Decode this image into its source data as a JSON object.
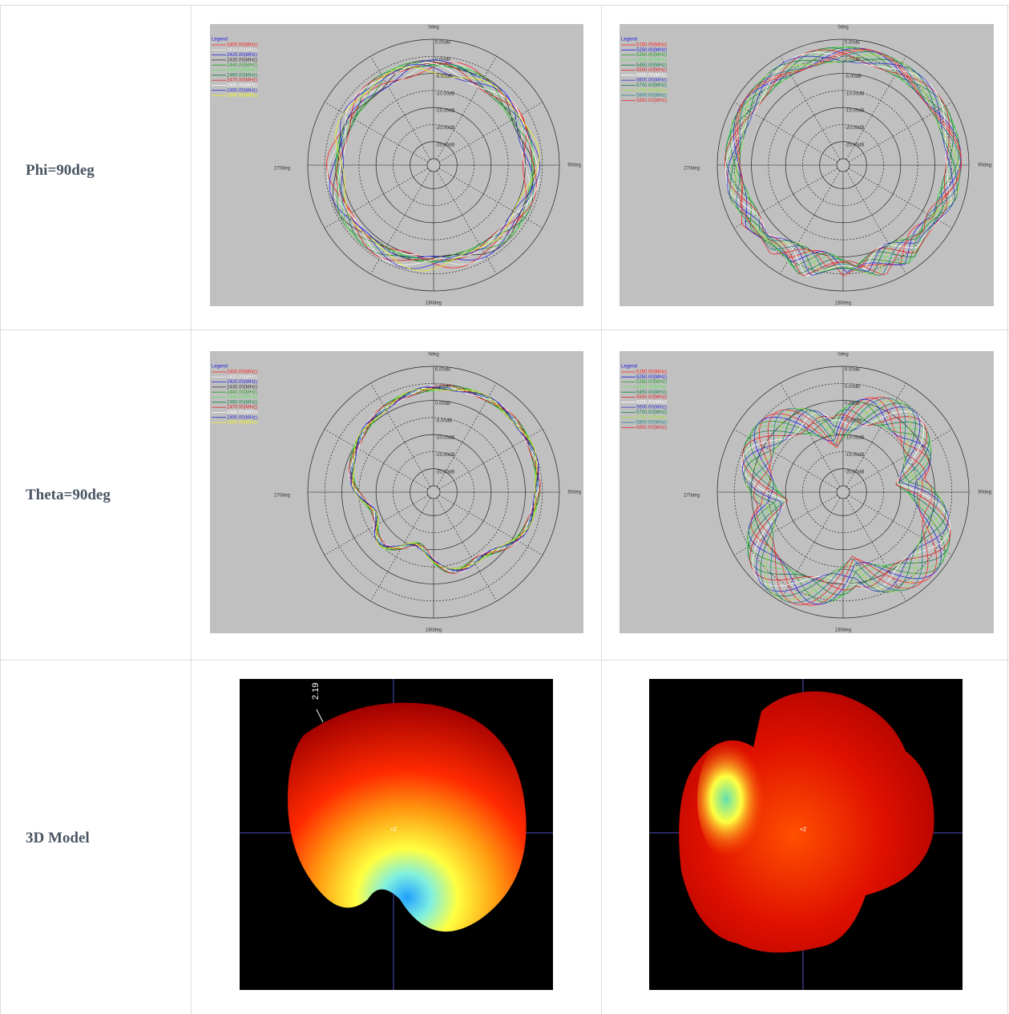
{
  "table": {
    "rows": [
      {
        "label": "Phi=90deg",
        "cells": [
          {
            "legend_title": "Legend",
            "legend": [
              {
                "label": "2400.00(MHz)",
                "color": "#ff2020"
              },
              {
                "label": "2410.00(MHz)",
                "color": "#f0f0f0"
              },
              {
                "label": "2420.00(MHz)",
                "color": "#2020e0"
              },
              {
                "label": "2430.00(MHz)",
                "color": "#303030"
              },
              {
                "label": "2440.00(MHz)",
                "color": "#20a020"
              },
              {
                "label": "2450.00(MHz)",
                "color": "#60e060"
              },
              {
                "label": "2460.00(MHz)",
                "color": "#108040"
              },
              {
                "label": "2470.00(MHz)",
                "color": "#e02020"
              },
              {
                "label": "2480.00(MHz)",
                "color": "#ffffff"
              },
              {
                "label": "2490.00(MHz)",
                "color": "#3030d0"
              },
              {
                "label": "2500.00(MHz)",
                "color": "#f0f020"
              }
            ],
            "angle_labels": [
              "0deg",
              "90deg",
              "180deg",
              "270deg"
            ],
            "ring_labels": [
              "5.00dB",
              "0.00dB",
              "-5.00dB",
              "-10.00dB",
              "-15.00dB",
              "-20.00dB",
              "-25.00dB"
            ]
          },
          {
            "legend_title": "Legend",
            "legend": [
              {
                "label": "5150.00(MHz)",
                "color": "#ff2020"
              },
              {
                "label": "5250.00(MHz)",
                "color": "#2020e0"
              },
              {
                "label": "5350.00(MHz)",
                "color": "#20a020"
              },
              {
                "label": "5400.00(MHz)",
                "color": "#60e060"
              },
              {
                "label": "5450.00(MHz)",
                "color": "#108040"
              },
              {
                "label": "5500.00(MHz)",
                "color": "#e02020"
              },
              {
                "label": "5550.00(MHz)",
                "color": "#ffffff"
              },
              {
                "label": "5600.00(MHz)",
                "color": "#3030d0"
              },
              {
                "label": "5700.00(MHz)",
                "color": "#108040"
              },
              {
                "label": "5750.00(MHz)",
                "color": "#a0e040"
              },
              {
                "label": "5800.00(MHz)",
                "color": "#208080"
              },
              {
                "label": "5850.00(MHz)",
                "color": "#e03030"
              }
            ],
            "angle_labels": [
              "0deg",
              "90deg",
              "180deg",
              "270deg"
            ],
            "ring_labels": [
              "5.00dB",
              "0.00dB",
              "-5.00dB",
              "-10.00dB",
              "-15.00dB",
              "-20.00dB",
              "-25.00dB"
            ]
          }
        ]
      },
      {
        "label": "Theta=90deg",
        "cells": [
          {
            "legend_title": "Legend",
            "legend": [
              {
                "label": "2400.00(MHz)",
                "color": "#ff2020"
              },
              {
                "label": "2410.00(MHz)",
                "color": "#f0f0f0"
              },
              {
                "label": "2420.00(MHz)",
                "color": "#2020e0"
              },
              {
                "label": "2430.00(MHz)",
                "color": "#303030"
              },
              {
                "label": "2440.00(MHz)",
                "color": "#20a020"
              },
              {
                "label": "2450.00(MHz)",
                "color": "#60e060"
              },
              {
                "label": "2460.00(MHz)",
                "color": "#108040"
              },
              {
                "label": "2470.00(MHz)",
                "color": "#e02020"
              },
              {
                "label": "2480.00(MHz)",
                "color": "#ffffff"
              },
              {
                "label": "2490.00(MHz)",
                "color": "#3030d0"
              },
              {
                "label": "2500.00(MHz)",
                "color": "#f0f020"
              }
            ],
            "angle_labels": [
              "0deg",
              "90deg",
              "180deg",
              "270deg"
            ],
            "ring_labels": [
              "6.00dB",
              "5.00dB",
              "0.00dB",
              "-5.00dB",
              "-10.00dB",
              "-15.00dB",
              "-20.00dB"
            ]
          },
          {
            "legend_title": "Legend",
            "legend": [
              {
                "label": "5150.00(MHz)",
                "color": "#ff2020"
              },
              {
                "label": "5250.00(MHz)",
                "color": "#2020e0"
              },
              {
                "label": "5350.00(MHz)",
                "color": "#20a020"
              },
              {
                "label": "5400.00(MHz)",
                "color": "#60e060"
              },
              {
                "label": "5450.00(MHz)",
                "color": "#108040"
              },
              {
                "label": "5500.00(MHz)",
                "color": "#e02020"
              },
              {
                "label": "5550.00(MHz)",
                "color": "#ffffff"
              },
              {
                "label": "5600.00(MHz)",
                "color": "#3030d0"
              },
              {
                "label": "5700.00(MHz)",
                "color": "#108040"
              },
              {
                "label": "5750.00(MHz)",
                "color": "#a0e040"
              },
              {
                "label": "5800.00(MHz)",
                "color": "#208080"
              },
              {
                "label": "5850.00(MHz)",
                "color": "#e03030"
              }
            ],
            "angle_labels": [
              "0deg",
              "90deg",
              "180deg",
              "270deg"
            ],
            "ring_labels": [
              "6.00dB",
              "5.00dB",
              "0.00dB",
              "-5.00dB",
              "-10.00dB",
              "-15.00dB",
              "-20.00dB"
            ]
          }
        ]
      },
      {
        "label": "3D Model",
        "cells": [
          {
            "scale_label": "2.19",
            "axis_label": "+Z"
          },
          {
            "axis_label": "+Z"
          }
        ]
      }
    ]
  }
}
